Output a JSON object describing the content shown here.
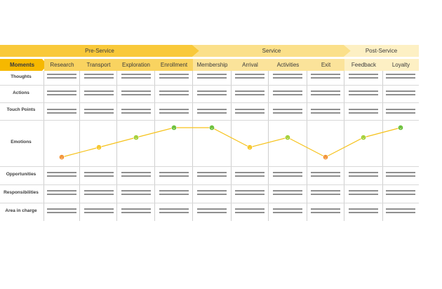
{
  "phases": [
    {
      "label": "Pre-Service"
    },
    {
      "label": "Service"
    },
    {
      "label": "Post-Service"
    }
  ],
  "moments_label": "Moments",
  "moments": [
    {
      "label": "Research",
      "phase": "pre"
    },
    {
      "label": "Transport",
      "phase": "pre"
    },
    {
      "label": "Exploration",
      "phase": "pre"
    },
    {
      "label": "Enrollment",
      "phase": "pre"
    },
    {
      "label": "Membership",
      "phase": "svc"
    },
    {
      "label": "Arrival",
      "phase": "svc"
    },
    {
      "label": "Activities",
      "phase": "svc"
    },
    {
      "label": "Exit",
      "phase": "svc"
    },
    {
      "label": "Feedback",
      "phase": "post"
    },
    {
      "label": "Loyalty",
      "phase": "post"
    }
  ],
  "rows": [
    {
      "label": "Thoughts"
    },
    {
      "label": "Actions"
    },
    {
      "label": "Touch Points"
    },
    {
      "label": "Emotions"
    },
    {
      "label": "Opportunities"
    },
    {
      "label": "Responsibilities"
    },
    {
      "label": "Area in charge"
    }
  ],
  "emotions": {
    "levels": [
      1,
      2,
      3,
      4,
      4,
      2,
      3,
      1,
      3,
      4
    ],
    "level_colors": {
      "1": "#f28c28",
      "2": "#f6c21a",
      "3": "#9ccc28",
      "4": "#5fbb2a"
    },
    "line_color": "#f6c21a"
  },
  "colors": {
    "pre": "#f9c93a",
    "service": "#fbe08a",
    "post": "#fdf0c4",
    "moments_accent": "#f6b800"
  }
}
